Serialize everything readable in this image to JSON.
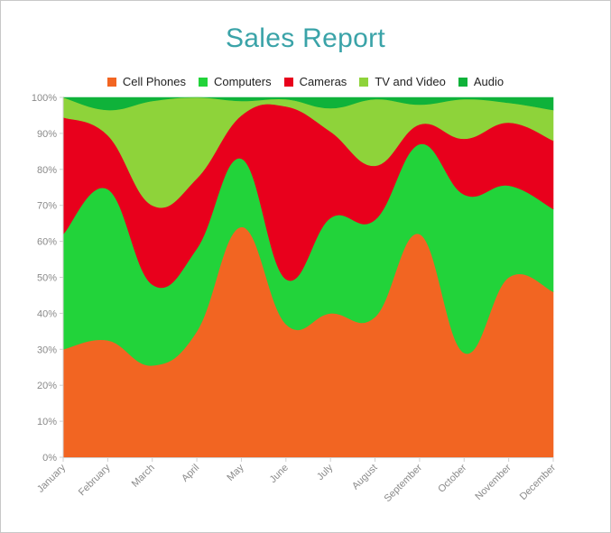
{
  "chart_data": {
    "type": "area",
    "stacked": "percent",
    "title": "Sales Report",
    "xlabel": "",
    "ylabel": "",
    "ylim": [
      0,
      100
    ],
    "y_ticks": [
      "0%",
      "10%",
      "20%",
      "30%",
      "40%",
      "50%",
      "60%",
      "70%",
      "80%",
      "90%",
      "100%"
    ],
    "categories": [
      "January",
      "February",
      "March",
      "April",
      "May",
      "June",
      "July",
      "August",
      "September",
      "October",
      "November",
      "December"
    ],
    "legend_position": "top",
    "series": [
      {
        "name": "Cell Phones",
        "color": "#f26522",
        "values": [
          30,
          32.5,
          25.5,
          35,
          64,
          37,
          40,
          39,
          62,
          29,
          50,
          46
        ]
      },
      {
        "name": "Computers",
        "color": "#22d33a",
        "values": [
          32,
          42,
          22.5,
          23,
          19,
          12.5,
          26.5,
          27,
          25,
          44,
          25.5,
          23
        ]
      },
      {
        "name": "Cameras",
        "color": "#e8001c",
        "values": [
          32.5,
          15,
          22,
          19.5,
          12,
          48,
          24,
          15,
          5.5,
          15.5,
          17.5,
          19
        ]
      },
      {
        "name": "TV and Video",
        "color": "#8ed33a",
        "values": [
          5.5,
          7,
          29,
          22.5,
          4,
          2,
          6.5,
          18.5,
          5.5,
          11,
          5.5,
          8.5
        ]
      },
      {
        "name": "Audio",
        "color": "#0fb23a",
        "values": [
          0,
          3.5,
          1,
          0,
          1,
          0.5,
          3,
          0.5,
          2,
          0.5,
          1.5,
          3.5
        ]
      }
    ]
  }
}
